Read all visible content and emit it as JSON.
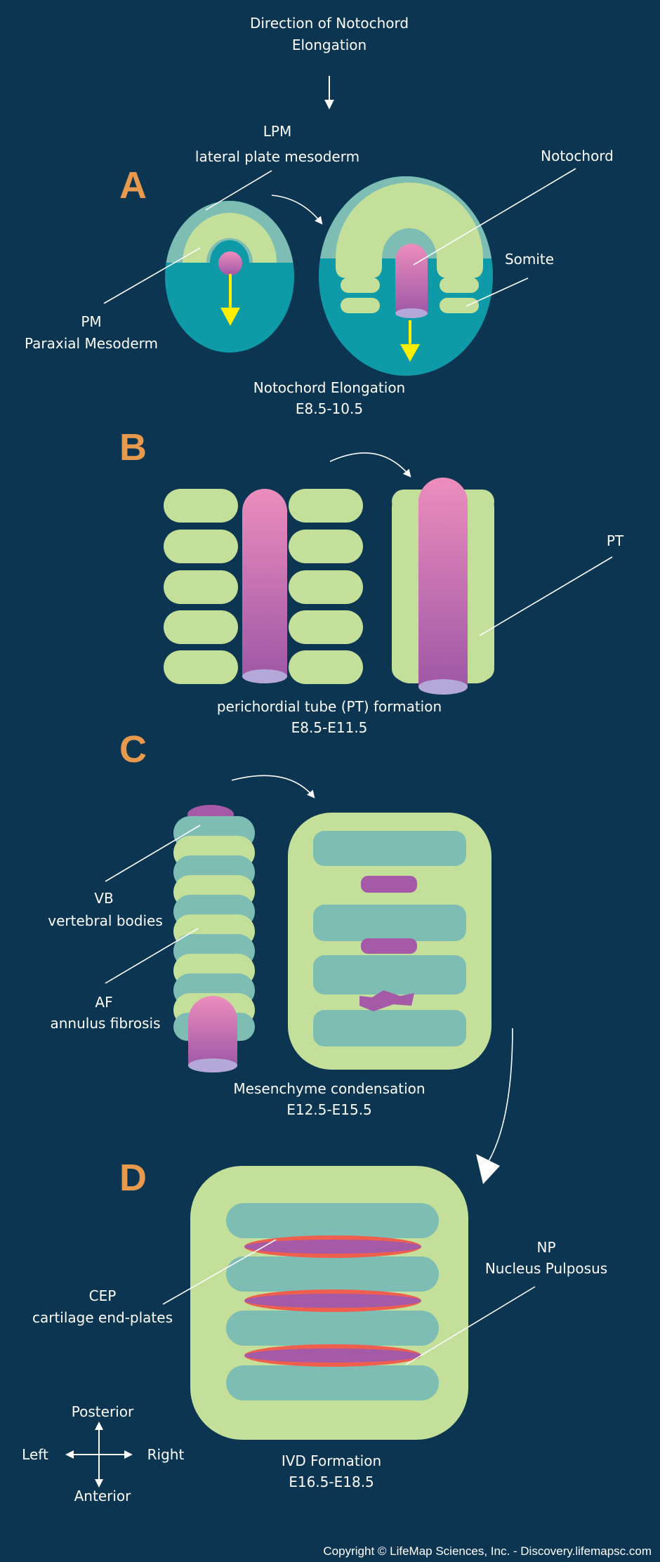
{
  "header": {
    "line1": "Direction of Notochord",
    "line2": "Elongation"
  },
  "panels": {
    "a": {
      "letter": "A",
      "lpm_abbr": "LPM",
      "lpm_full": "lateral plate mesoderm",
      "pm_abbr": "PM",
      "pm_full": "Paraxial  Mesoderm",
      "notochord": "Notochord",
      "somite": "Somite",
      "caption": "Notochord Elongation",
      "stage": "E8.5-10.5"
    },
    "b": {
      "letter": "B",
      "pt": "PT",
      "caption": "perichordial tube (PT) formation",
      "stage": "E8.5-E11.5"
    },
    "c": {
      "letter": "C",
      "vb_abbr": "VB",
      "vb_full": "vertebral bodies",
      "af_abbr": "AF",
      "af_full": "annulus fibrosis",
      "caption": "Mesenchyme condensation",
      "stage": "E12.5-E15.5"
    },
    "d": {
      "letter": "D",
      "cep_abbr": "CEP",
      "cep_full": "cartilage end-plates",
      "np_abbr": "NP",
      "np_full": "Nucleus Pulposus",
      "caption": "IVD Formation",
      "stage": "E16.5-E18.5"
    }
  },
  "compass": {
    "posterior": "Posterior",
    "anterior": "Anterior",
    "left": "Left",
    "right": "Right"
  },
  "footer": {
    "copyright": "Copyright © LifeMap Sciences, Inc. - Discovery.lifemapsc.com"
  },
  "colors": {
    "background": "#0c3552",
    "teal": "#0e9aa6",
    "pale_teal": "#7dbdb4",
    "pale_green": "#c3df99",
    "pink": "#ec8dbd",
    "purple": "#a55aa7",
    "lavender": "#b3a8d8",
    "red": "#ef5f4e",
    "yellow": "#ffee00",
    "orange": "#e79a4d"
  }
}
